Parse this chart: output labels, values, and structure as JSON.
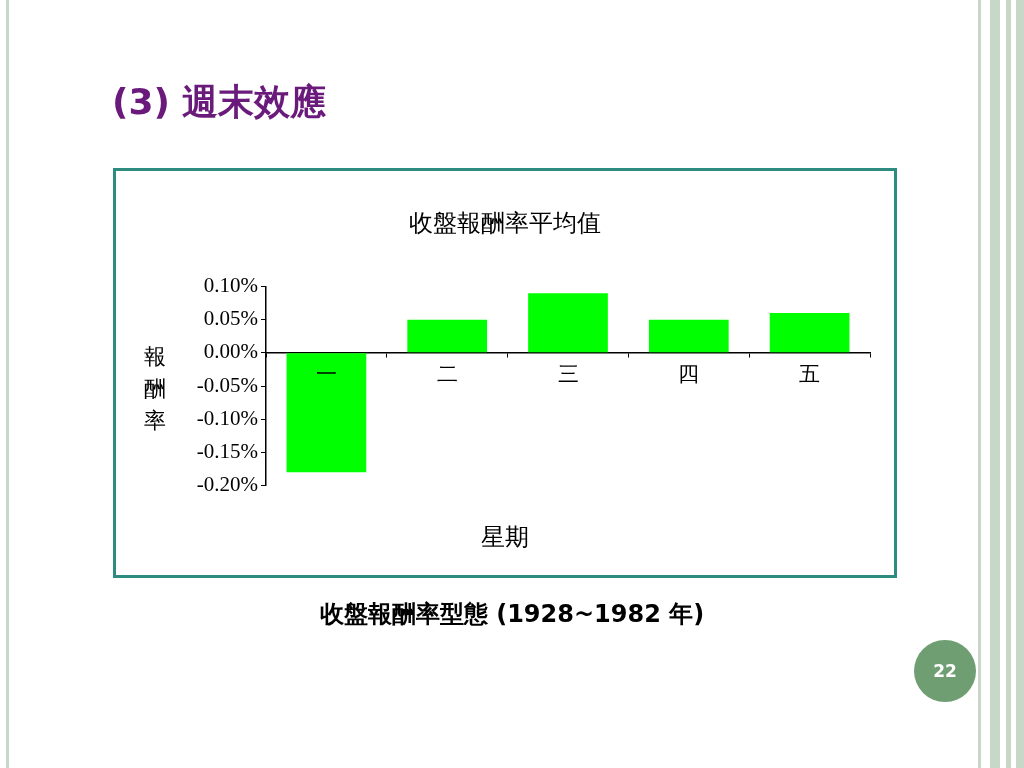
{
  "chart_data": {
    "type": "bar",
    "title": "(3) 週末效應",
    "subtitle": "收盤報酬率平均值",
    "xlabel": "星期",
    "ylabel": "報酬率",
    "categories": [
      "一",
      "二",
      "三",
      "四",
      "五"
    ],
    "values": [
      -0.18,
      0.05,
      0.09,
      0.05,
      0.06
    ],
    "color": "#00ff00",
    "ylim": [
      -0.2,
      0.1
    ],
    "yticks": [
      {
        "value": 0.1,
        "label": "0.10%"
      },
      {
        "value": 0.05,
        "label": "0.05%"
      },
      {
        "value": 0,
        "label": "0.00%"
      },
      {
        "value": -0.05,
        "label": "-0.05%"
      },
      {
        "value": -0.1,
        "label": "-0.10%"
      },
      {
        "value": -0.15,
        "label": "-0.15%"
      },
      {
        "value": -0.2,
        "label": "-0.20%"
      }
    ],
    "annotations": [
      "收盤報酬率型態 (1928~1982 年)",
      "22"
    ]
  }
}
